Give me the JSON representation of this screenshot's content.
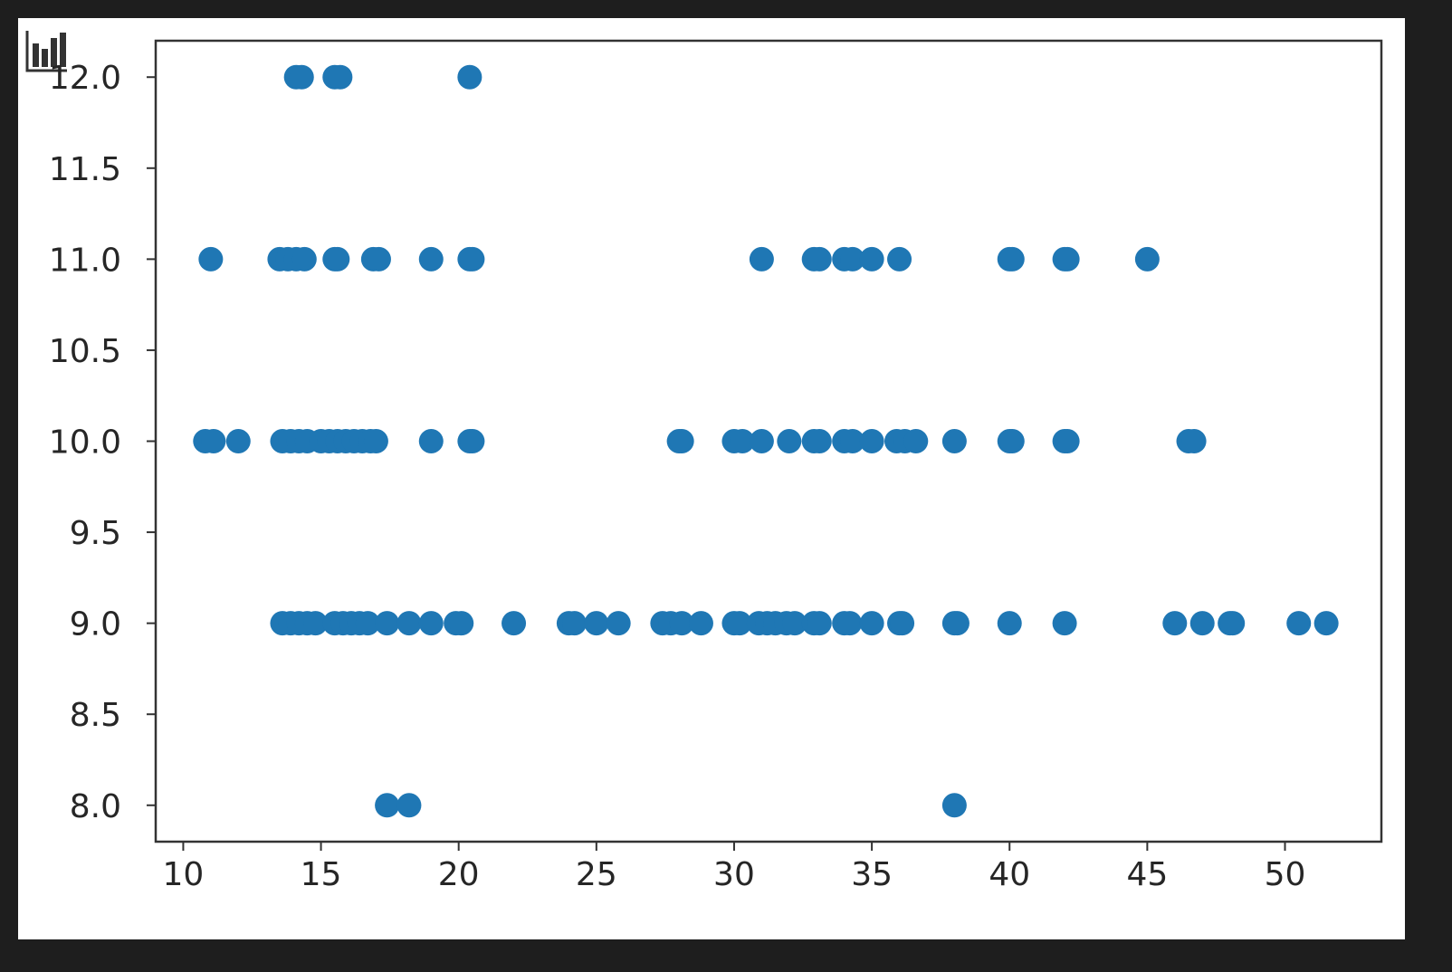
{
  "toolbar": {
    "icon": "bar-chart-icon"
  },
  "chart_data": {
    "type": "scatter",
    "title": "",
    "xlabel": "",
    "ylabel": "",
    "xlim": [
      9.0,
      53.5
    ],
    "ylim": [
      7.8,
      12.2
    ],
    "xticks": [
      "10",
      "15",
      "20",
      "25",
      "30",
      "35",
      "40",
      "45",
      "50"
    ],
    "yticks": [
      "8.0",
      "8.5",
      "9.0",
      "9.5",
      "10.0",
      "10.5",
      "11.0",
      "11.5",
      "12.0"
    ],
    "grid": false,
    "color": "#1f77b4",
    "series": [
      {
        "points": [
          [
            14.1,
            12
          ],
          [
            14.3,
            12
          ],
          [
            15.5,
            12
          ],
          [
            15.7,
            12
          ],
          [
            20.4,
            12
          ],
          [
            11,
            11
          ],
          [
            13.5,
            11
          ],
          [
            13.8,
            11
          ],
          [
            14.1,
            11
          ],
          [
            14.4,
            11
          ],
          [
            15.5,
            11
          ],
          [
            15.6,
            11
          ],
          [
            16.9,
            11
          ],
          [
            17.1,
            11
          ],
          [
            19,
            11
          ],
          [
            20.4,
            11
          ],
          [
            20.5,
            11
          ],
          [
            31,
            11
          ],
          [
            32.9,
            11
          ],
          [
            33.1,
            11
          ],
          [
            34,
            11
          ],
          [
            34.3,
            11
          ],
          [
            35,
            11
          ],
          [
            36,
            11
          ],
          [
            40,
            11
          ],
          [
            40.1,
            11
          ],
          [
            42,
            11
          ],
          [
            42.1,
            11
          ],
          [
            45,
            11
          ],
          [
            10.8,
            10
          ],
          [
            11.1,
            10
          ],
          [
            12,
            10
          ],
          [
            13.6,
            10
          ],
          [
            13.9,
            10
          ],
          [
            14.2,
            10
          ],
          [
            14.5,
            10
          ],
          [
            15,
            10
          ],
          [
            15.3,
            10
          ],
          [
            15.6,
            10
          ],
          [
            15.9,
            10
          ],
          [
            16.2,
            10
          ],
          [
            16.5,
            10
          ],
          [
            16.8,
            10
          ],
          [
            17,
            10
          ],
          [
            19,
            10
          ],
          [
            20.4,
            10
          ],
          [
            20.5,
            10
          ],
          [
            28,
            10
          ],
          [
            28.1,
            10
          ],
          [
            30,
            10
          ],
          [
            30.3,
            10
          ],
          [
            31,
            10
          ],
          [
            32,
            10
          ],
          [
            32.9,
            10
          ],
          [
            33.1,
            10
          ],
          [
            34,
            10
          ],
          [
            34.3,
            10
          ],
          [
            35,
            10
          ],
          [
            35.9,
            10
          ],
          [
            36.2,
            10
          ],
          [
            36.6,
            10
          ],
          [
            38,
            10
          ],
          [
            40,
            10
          ],
          [
            40.1,
            10
          ],
          [
            42,
            10
          ],
          [
            42.1,
            10
          ],
          [
            46.5,
            10
          ],
          [
            46.7,
            10
          ],
          [
            13.6,
            9
          ],
          [
            13.9,
            9
          ],
          [
            14.2,
            9
          ],
          [
            14.5,
            9
          ],
          [
            14.8,
            9
          ],
          [
            15.5,
            9
          ],
          [
            15.8,
            9
          ],
          [
            16.1,
            9
          ],
          [
            16.4,
            9
          ],
          [
            16.7,
            9
          ],
          [
            17.4,
            9
          ],
          [
            18.2,
            9
          ],
          [
            19,
            9
          ],
          [
            19.9,
            9
          ],
          [
            20.1,
            9
          ],
          [
            22,
            9
          ],
          [
            24,
            9
          ],
          [
            24.2,
            9
          ],
          [
            25,
            9
          ],
          [
            25.8,
            9
          ],
          [
            27.4,
            9
          ],
          [
            27.7,
            9
          ],
          [
            28.1,
            9
          ],
          [
            28.8,
            9
          ],
          [
            30,
            9
          ],
          [
            30.2,
            9
          ],
          [
            30.9,
            9
          ],
          [
            31.2,
            9
          ],
          [
            31.5,
            9
          ],
          [
            31.9,
            9
          ],
          [
            32.2,
            9
          ],
          [
            32.9,
            9
          ],
          [
            33.1,
            9
          ],
          [
            34,
            9
          ],
          [
            34.2,
            9
          ],
          [
            35,
            9
          ],
          [
            36,
            9
          ],
          [
            36.1,
            9
          ],
          [
            38,
            9
          ],
          [
            38.1,
            9
          ],
          [
            40,
            9
          ],
          [
            42,
            9
          ],
          [
            46,
            9
          ],
          [
            47,
            9
          ],
          [
            48,
            9
          ],
          [
            48.1,
            9
          ],
          [
            50.5,
            9
          ],
          [
            51.5,
            9
          ],
          [
            17.4,
            8
          ],
          [
            18.2,
            8
          ],
          [
            38,
            8
          ]
        ]
      }
    ]
  }
}
